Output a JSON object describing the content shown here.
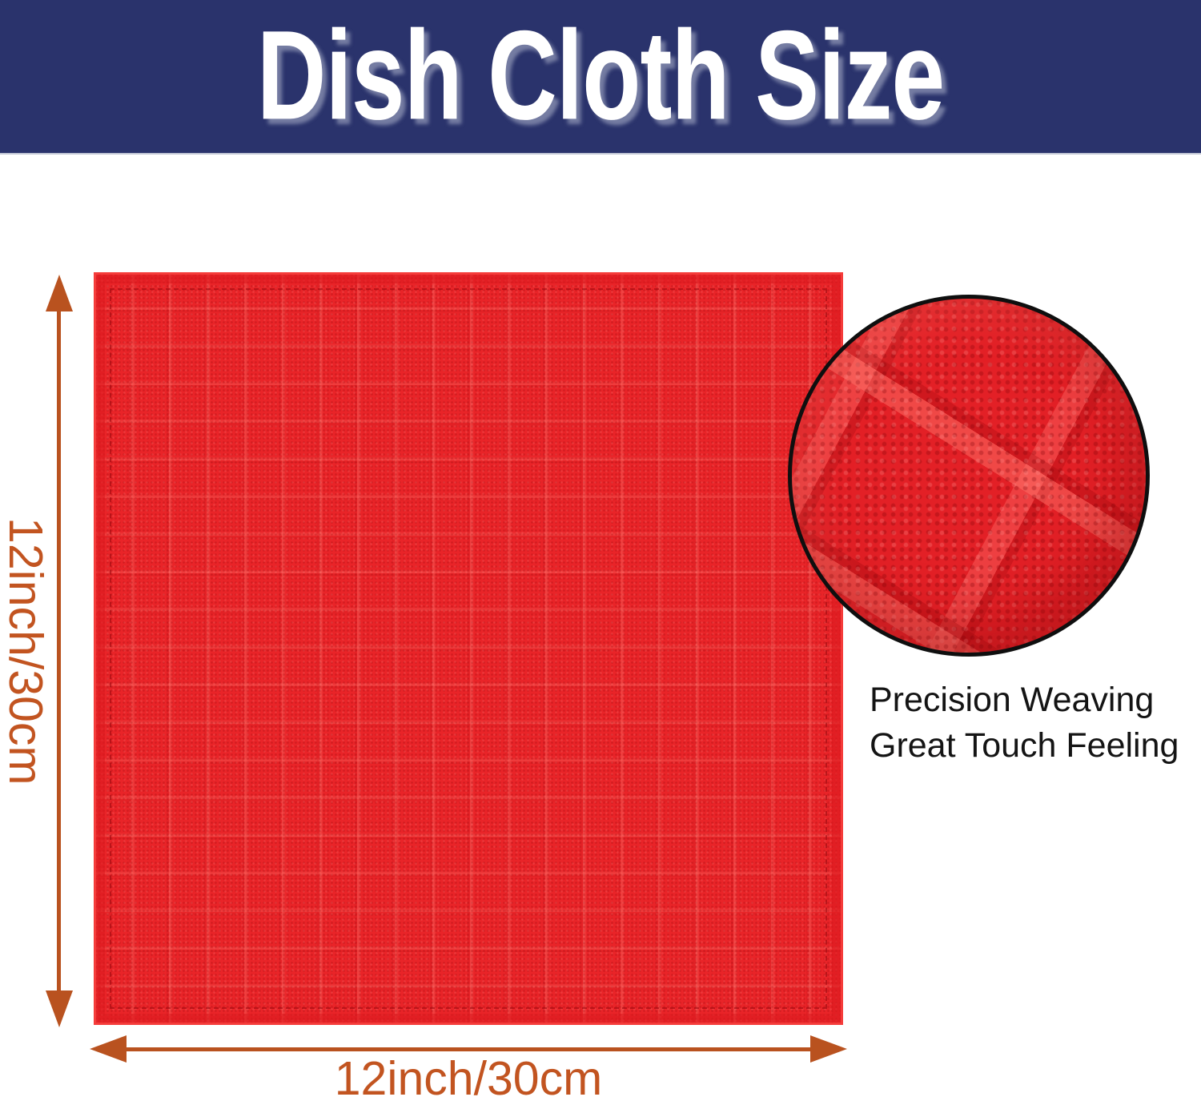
{
  "banner": {
    "title": "Dish Cloth Size",
    "bg_color": "#2a336c",
    "text_color": "#ffffff"
  },
  "cloth": {
    "description": "red waffle-weave microfiber dish cloth",
    "base_color": "#e92428"
  },
  "dimensions": {
    "vertical_label": "12inch/30cm",
    "horizontal_label": "12inch/30cm",
    "arrow_color": "#b9521f",
    "label_color": "#c25420"
  },
  "magnifier": {
    "description": "zoomed circular view of cloth weave texture",
    "border_color": "#0f0f0f",
    "caption_lines": [
      "Precision Weaving",
      "Great Touch Feeling"
    ],
    "caption_color": "#141414"
  }
}
